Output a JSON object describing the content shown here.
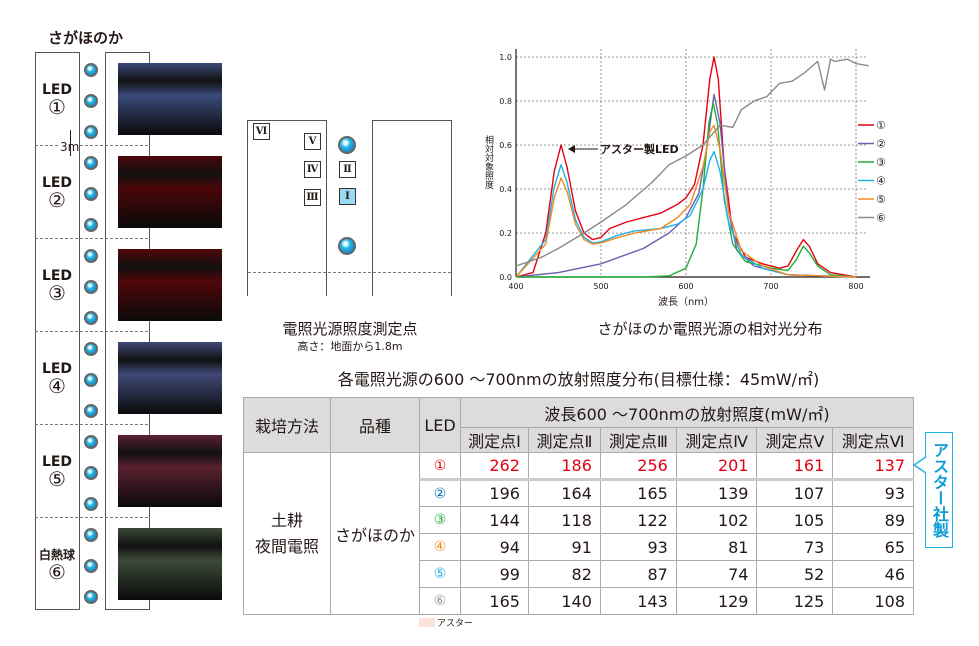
{
  "layout_diagram": {
    "title": "さがほのか",
    "spacing_label": "3m",
    "leds": [
      {
        "label": "LED",
        "num": "①",
        "photo_color": "#3a4a7a"
      },
      {
        "label": "LED",
        "num": "②",
        "photo_color": "#4a0608"
      },
      {
        "label": "LED",
        "num": "③",
        "photo_color": "#500709"
      },
      {
        "label": "LED",
        "num": "④",
        "photo_color": "#404a78"
      },
      {
        "label": "LED",
        "num": "⑤",
        "photo_color": "#5a2030"
      },
      {
        "label": "白熱球",
        "num": "⑥",
        "photo_color": "#3c4a38"
      }
    ]
  },
  "measure_diagram": {
    "points": [
      "Ⅰ",
      "Ⅱ",
      "Ⅲ",
      "Ⅳ",
      "Ⅴ",
      "Ⅵ"
    ],
    "caption": "電照光源照度測定点",
    "subcaption": "高さ：地面から1.8m"
  },
  "chart_data": {
    "type": "line",
    "title": "さがほのか電照光源の相対光分布",
    "xlabel": "波長（nm）",
    "ylabel": "相対対象照度",
    "xlim": [
      400,
      815
    ],
    "ylim": [
      0,
      1.0
    ],
    "xticks": [
      400,
      500,
      600,
      700,
      800
    ],
    "yticks": [
      "0.0",
      "0.2",
      "0.4",
      "0.6",
      "0.8",
      "1.0"
    ],
    "grid": true,
    "legend": "right",
    "annotation": "アスター製LED",
    "series": [
      {
        "name": "①",
        "color": "#e60012",
        "points": [
          [
            400,
            0
          ],
          [
            420,
            0.02
          ],
          [
            435,
            0.2
          ],
          [
            445,
            0.48
          ],
          [
            453,
            0.6
          ],
          [
            460,
            0.5
          ],
          [
            470,
            0.3
          ],
          [
            480,
            0.2
          ],
          [
            490,
            0.17
          ],
          [
            500,
            0.18
          ],
          [
            510,
            0.22
          ],
          [
            530,
            0.25
          ],
          [
            550,
            0.27
          ],
          [
            570,
            0.29
          ],
          [
            590,
            0.33
          ],
          [
            600,
            0.36
          ],
          [
            610,
            0.42
          ],
          [
            620,
            0.6
          ],
          [
            628,
            0.9
          ],
          [
            633,
            1.0
          ],
          [
            638,
            0.9
          ],
          [
            645,
            0.5
          ],
          [
            655,
            0.2
          ],
          [
            670,
            0.09
          ],
          [
            690,
            0.06
          ],
          [
            710,
            0.04
          ],
          [
            720,
            0.05
          ],
          [
            730,
            0.12
          ],
          [
            738,
            0.17
          ],
          [
            745,
            0.14
          ],
          [
            755,
            0.06
          ],
          [
            770,
            0.02
          ],
          [
            800,
            0
          ]
        ]
      },
      {
        "name": "②",
        "color": "#6a5fb0",
        "points": [
          [
            400,
            0
          ],
          [
            450,
            0.02
          ],
          [
            500,
            0.06
          ],
          [
            550,
            0.13
          ],
          [
            580,
            0.2
          ],
          [
            600,
            0.27
          ],
          [
            615,
            0.38
          ],
          [
            625,
            0.6
          ],
          [
            633,
            0.83
          ],
          [
            640,
            0.7
          ],
          [
            650,
            0.3
          ],
          [
            660,
            0.12
          ],
          [
            680,
            0.05
          ],
          [
            720,
            0.01
          ],
          [
            800,
            0
          ]
        ]
      },
      {
        "name": "③",
        "color": "#22ac38",
        "points": [
          [
            400,
            0
          ],
          [
            550,
            0
          ],
          [
            580,
            0.005
          ],
          [
            600,
            0.04
          ],
          [
            612,
            0.15
          ],
          [
            620,
            0.4
          ],
          [
            627,
            0.7
          ],
          [
            632,
            0.79
          ],
          [
            637,
            0.7
          ],
          [
            645,
            0.35
          ],
          [
            655,
            0.15
          ],
          [
            670,
            0.07
          ],
          [
            700,
            0.04
          ],
          [
            720,
            0.03
          ],
          [
            730,
            0.08
          ],
          [
            738,
            0.14
          ],
          [
            745,
            0.11
          ],
          [
            755,
            0.05
          ],
          [
            770,
            0.01
          ],
          [
            800,
            0
          ]
        ]
      },
      {
        "name": "④",
        "color": "#1fb1e8",
        "points": [
          [
            400,
            0
          ],
          [
            435,
            0.17
          ],
          [
            445,
            0.41
          ],
          [
            453,
            0.51
          ],
          [
            460,
            0.43
          ],
          [
            470,
            0.26
          ],
          [
            480,
            0.18
          ],
          [
            490,
            0.155
          ],
          [
            500,
            0.16
          ],
          [
            520,
            0.19
          ],
          [
            540,
            0.21
          ],
          [
            570,
            0.22
          ],
          [
            590,
            0.24
          ],
          [
            605,
            0.28
          ],
          [
            620,
            0.4
          ],
          [
            628,
            0.53
          ],
          [
            633,
            0.57
          ],
          [
            640,
            0.48
          ],
          [
            650,
            0.25
          ],
          [
            665,
            0.1
          ],
          [
            690,
            0.04
          ],
          [
            720,
            0.01
          ],
          [
            800,
            0
          ]
        ]
      },
      {
        "name": "⑤",
        "color": "#f08a24",
        "points": [
          [
            400,
            0
          ],
          [
            435,
            0.15
          ],
          [
            445,
            0.36
          ],
          [
            453,
            0.45
          ],
          [
            460,
            0.39
          ],
          [
            470,
            0.24
          ],
          [
            480,
            0.17
          ],
          [
            490,
            0.15
          ],
          [
            500,
            0.155
          ],
          [
            520,
            0.18
          ],
          [
            540,
            0.2
          ],
          [
            570,
            0.22
          ],
          [
            590,
            0.27
          ],
          [
            605,
            0.33
          ],
          [
            620,
            0.5
          ],
          [
            628,
            0.66
          ],
          [
            633,
            0.69
          ],
          [
            640,
            0.58
          ],
          [
            650,
            0.3
          ],
          [
            665,
            0.12
          ],
          [
            690,
            0.05
          ],
          [
            720,
            0.01
          ],
          [
            800,
            0
          ]
        ]
      },
      {
        "name": "⑥",
        "color": "#8a8a8a",
        "points": [
          [
            400,
            0.05
          ],
          [
            430,
            0.09
          ],
          [
            450,
            0.13
          ],
          [
            480,
            0.2
          ],
          [
            500,
            0.25
          ],
          [
            530,
            0.33
          ],
          [
            560,
            0.43
          ],
          [
            580,
            0.51
          ],
          [
            600,
            0.55
          ],
          [
            620,
            0.6
          ],
          [
            640,
            0.69
          ],
          [
            655,
            0.68
          ],
          [
            665,
            0.76
          ],
          [
            680,
            0.8
          ],
          [
            695,
            0.82
          ],
          [
            710,
            0.88
          ],
          [
            725,
            0.89
          ],
          [
            740,
            0.93
          ],
          [
            755,
            0.98
          ],
          [
            763,
            0.85
          ],
          [
            770,
            0.99
          ],
          [
            775,
            0.98
          ],
          [
            790,
            0.99
          ],
          [
            800,
            0.97
          ],
          [
            815,
            0.96
          ]
        ]
      }
    ]
  },
  "table": {
    "title": "各電照光源の600 ～700nmの放射照度分布(目標仕様：45mW/㎡)",
    "headers": {
      "method": "栽培方法",
      "variety": "品種",
      "led": "LED",
      "group": "波長600 ～700nmの放射照度(mW/㎡)",
      "points": [
        "測定点Ⅰ",
        "測定点Ⅱ",
        "測定点Ⅲ",
        "測定点Ⅳ",
        "測定点Ⅴ",
        "測定点Ⅵ"
      ]
    },
    "method": [
      "土耕",
      "夜間電照"
    ],
    "variety": "さがほのか",
    "rows": [
      {
        "led": "①",
        "color": "#e60012",
        "values": [
          "262",
          "186",
          "256",
          "201",
          "161",
          "137"
        ]
      },
      {
        "led": "②",
        "color": "#0068b7",
        "values": [
          "196",
          "164",
          "165",
          "139",
          "107",
          "93"
        ]
      },
      {
        "led": "③",
        "color": "#22ac38",
        "values": [
          "144",
          "118",
          "122",
          "102",
          "105",
          "89"
        ]
      },
      {
        "led": "④",
        "color": "#f08a24",
        "values": [
          "94",
          "91",
          "93",
          "81",
          "73",
          "65"
        ]
      },
      {
        "led": "⑤",
        "color": "#1fb1e8",
        "values": [
          "99",
          "82",
          "87",
          "74",
          "52",
          "46"
        ]
      },
      {
        "led": "⑥",
        "color": "#999999",
        "values": [
          "165",
          "140",
          "143",
          "129",
          "125",
          "108"
        ]
      }
    ],
    "callout": "アスター社製",
    "legend_note": "アスター",
    "legend_color": "#fbe3dc"
  }
}
